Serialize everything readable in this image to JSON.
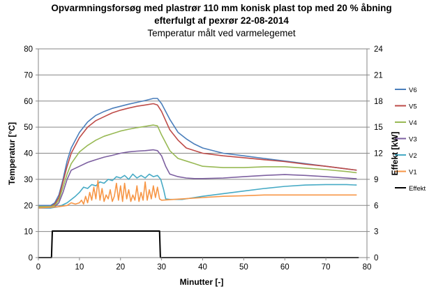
{
  "chart_data": {
    "type": "line",
    "title_lines": [
      "Opvarmningsforsøg med plastrør 110 mm konisk plast top med 20 % åbning",
      "efterfulgt af pexrør 22-08-2014"
    ],
    "subtitle": "Temperatur målt ved varmelegemet",
    "xlabel": "Minutter [-]",
    "ylabel": "Temperatur [°C]",
    "y2label": "Effekt [kW]",
    "xlim": [
      0,
      80
    ],
    "ylim": [
      0,
      80
    ],
    "y2lim": [
      0,
      24
    ],
    "xticks": [
      0,
      10,
      20,
      30,
      40,
      50,
      60,
      70,
      80
    ],
    "yticks": [
      0,
      10,
      20,
      30,
      40,
      50,
      60,
      70,
      80
    ],
    "y2ticks": [
      0,
      3,
      6,
      9,
      12,
      15,
      18,
      21,
      24
    ],
    "grid": "horizontal",
    "legend_position": "right",
    "series": [
      {
        "name": "V6",
        "color": "#4a7ebb",
        "axis": "left",
        "x": [
          0,
          3,
          4,
          5,
          6,
          7,
          8,
          10,
          12,
          14,
          16,
          18,
          20,
          22,
          24,
          26,
          28,
          29,
          30,
          32,
          34,
          36,
          38,
          40,
          45,
          50,
          55,
          60,
          65,
          70,
          75,
          77.5
        ],
        "y": [
          20,
          20,
          21,
          24,
          30,
          37,
          42,
          48,
          52,
          54.5,
          56,
          57.2,
          58,
          58.8,
          59.5,
          60.2,
          61,
          61,
          59,
          53,
          48,
          45.5,
          43.5,
          42,
          40,
          39,
          38,
          37,
          36,
          35,
          34,
          33.5
        ]
      },
      {
        "name": "V5",
        "color": "#be4b48",
        "axis": "left",
        "x": [
          0,
          3,
          4,
          5,
          6,
          7,
          8,
          10,
          12,
          14,
          16,
          18,
          20,
          22,
          24,
          26,
          28,
          29,
          30,
          32,
          34,
          36,
          38,
          40,
          45,
          50,
          55,
          60,
          65,
          70,
          75,
          77.5
        ],
        "y": [
          19.5,
          19.5,
          20.5,
          23,
          29,
          35,
          40,
          46,
          50,
          52.5,
          54,
          55.5,
          56.5,
          57.3,
          58,
          58.5,
          59,
          58.5,
          56,
          49,
          45,
          42,
          41,
          40,
          39,
          38.3,
          37.5,
          36.8,
          35.8,
          35,
          34,
          33.5
        ]
      },
      {
        "name": "V4",
        "color": "#98b954",
        "axis": "left",
        "x": [
          0,
          3,
          4,
          5,
          6,
          7,
          8,
          10,
          12,
          14,
          16,
          18,
          20,
          22,
          24,
          26,
          28,
          29,
          30,
          32,
          34,
          36,
          38,
          40,
          45,
          50,
          55,
          60,
          65,
          70,
          75,
          77.5
        ],
        "y": [
          19.5,
          19.5,
          20,
          22,
          27,
          32,
          36,
          40.5,
          43,
          45,
          46.5,
          47.5,
          48.5,
          49.2,
          49.8,
          50.3,
          50.8,
          50.5,
          47,
          41,
          38,
          37,
          36,
          35,
          34.5,
          34.5,
          34.8,
          34.8,
          34.3,
          33.7,
          33,
          32.5
        ]
      },
      {
        "name": "V3",
        "color": "#7d60a0",
        "axis": "left",
        "x": [
          0,
          3,
          4,
          5,
          6,
          7,
          8,
          10,
          12,
          14,
          16,
          18,
          20,
          22,
          24,
          26,
          28,
          29,
          30,
          31,
          32,
          34,
          36,
          38,
          40,
          45,
          50,
          55,
          60,
          65,
          70,
          75,
          77.5
        ],
        "y": [
          19,
          19,
          19.5,
          21,
          25,
          30,
          33.5,
          35,
          36.5,
          37.5,
          38.5,
          39.2,
          40,
          40.5,
          40.8,
          41,
          41.3,
          41,
          39,
          35,
          32,
          31,
          30.5,
          30.3,
          30.3,
          30.5,
          31,
          31.5,
          31.8,
          31.5,
          31,
          30.5,
          30.2
        ]
      },
      {
        "name": "V2",
        "color": "#46aac5",
        "axis": "left",
        "x": [
          0,
          3,
          5,
          7,
          9,
          10,
          11,
          12,
          13,
          14,
          15,
          16,
          17,
          18,
          19,
          20,
          21,
          22,
          23,
          24,
          25,
          26,
          27,
          28,
          29,
          29.8,
          30.5,
          31,
          32,
          35,
          38,
          40,
          45,
          50,
          55,
          60,
          65,
          70,
          75,
          77.5
        ],
        "y": [
          19,
          19,
          19.5,
          21,
          23.5,
          25,
          27,
          26.5,
          28,
          27.5,
          29,
          28.5,
          30,
          29.5,
          31,
          30.5,
          31.5,
          30,
          32,
          30.5,
          31.5,
          30.5,
          32,
          31,
          31.5,
          30,
          26,
          22.5,
          22.3,
          22.3,
          23,
          23.5,
          24.5,
          25.5,
          26.5,
          27.3,
          27.8,
          28,
          28,
          27.8
        ]
      },
      {
        "name": "V1",
        "color": "#f79646",
        "axis": "left",
        "x": [
          0,
          5,
          7,
          8,
          9,
          10,
          10.5,
          11,
          11.5,
          12,
          12.5,
          13,
          13.5,
          14,
          14.5,
          15,
          15.5,
          16,
          16.5,
          17,
          17.5,
          18,
          18.5,
          19,
          19.5,
          20,
          20.5,
          21,
          21.5,
          22,
          22.5,
          23,
          23.5,
          24,
          24.5,
          25,
          25.5,
          26,
          26.5,
          27,
          27.5,
          28,
          28.5,
          29,
          29.5,
          30,
          35,
          40,
          45,
          50,
          55,
          60,
          65,
          70,
          75,
          77.5
        ],
        "y": [
          19,
          19.5,
          20,
          21,
          20.5,
          21,
          22,
          20.5,
          23.5,
          21,
          25,
          22,
          27,
          22.5,
          29.5,
          22,
          26.5,
          21.5,
          24,
          22.5,
          26,
          21.5,
          23.5,
          28.5,
          22,
          27.5,
          21.5,
          28.5,
          22.5,
          26,
          21.5,
          24,
          22,
          27.5,
          21.5,
          25,
          22,
          29,
          22,
          26,
          22.5,
          27.5,
          23,
          27,
          22.5,
          22,
          22.5,
          23,
          23.5,
          23.7,
          24,
          24,
          24,
          24,
          24,
          24
        ]
      },
      {
        "name": "Effekt",
        "color": "#000000",
        "axis": "right",
        "x": [
          0,
          3.2,
          3.4,
          29.5,
          29.7,
          78
        ],
        "y": [
          0,
          0,
          3.05,
          3.05,
          0,
          0
        ]
      }
    ]
  }
}
